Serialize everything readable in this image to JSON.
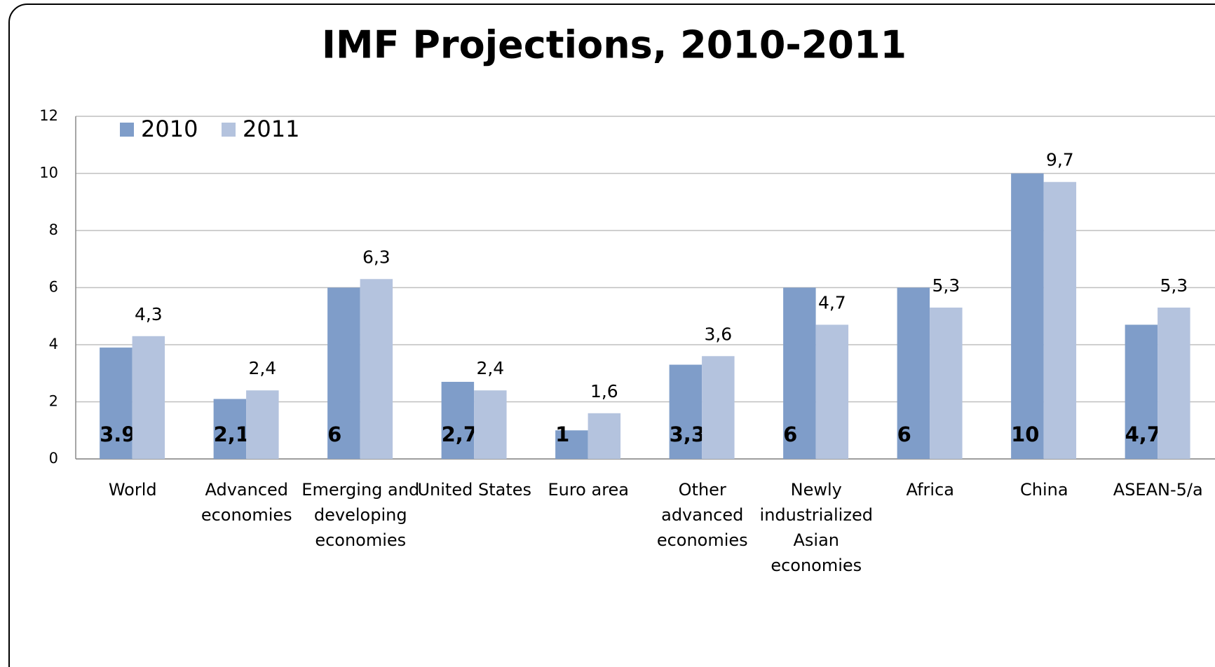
{
  "chart_data": {
    "type": "bar",
    "title": "IMF Projections, 2010-2011",
    "categories": [
      "World",
      "Advanced economies",
      "Emerging and developing economies",
      "United States",
      "Euro area",
      "Other advanced economies",
      "Newly industrialized Asian economies",
      "Africa",
      "China",
      "ASEAN-5/a"
    ],
    "series": [
      {
        "name": "2010",
        "color": "#7f9dc9",
        "values": [
          3.9,
          2.1,
          6,
          2.7,
          1,
          3.3,
          6,
          6,
          10,
          4.7
        ],
        "value_labels": [
          "3.9",
          "2,1",
          "6",
          "2,7",
          "1",
          "3,3",
          "6",
          "6",
          "10",
          "4,7"
        ]
      },
      {
        "name": "2011",
        "color": "#b4c3de",
        "values": [
          4.3,
          2.4,
          6.3,
          2.4,
          1.6,
          3.6,
          4.7,
          5.3,
          9.7,
          5.3
        ],
        "value_labels": [
          "4,3",
          "2,4",
          "6,3",
          "2,4",
          "1,6",
          "3,6",
          "4,7",
          "5,3",
          "9,7",
          "5,3"
        ]
      }
    ],
    "ylim": [
      0,
      12
    ],
    "yticks": [
      0,
      2,
      4,
      6,
      8,
      10,
      12
    ],
    "grid": true,
    "legend": "top-left"
  }
}
